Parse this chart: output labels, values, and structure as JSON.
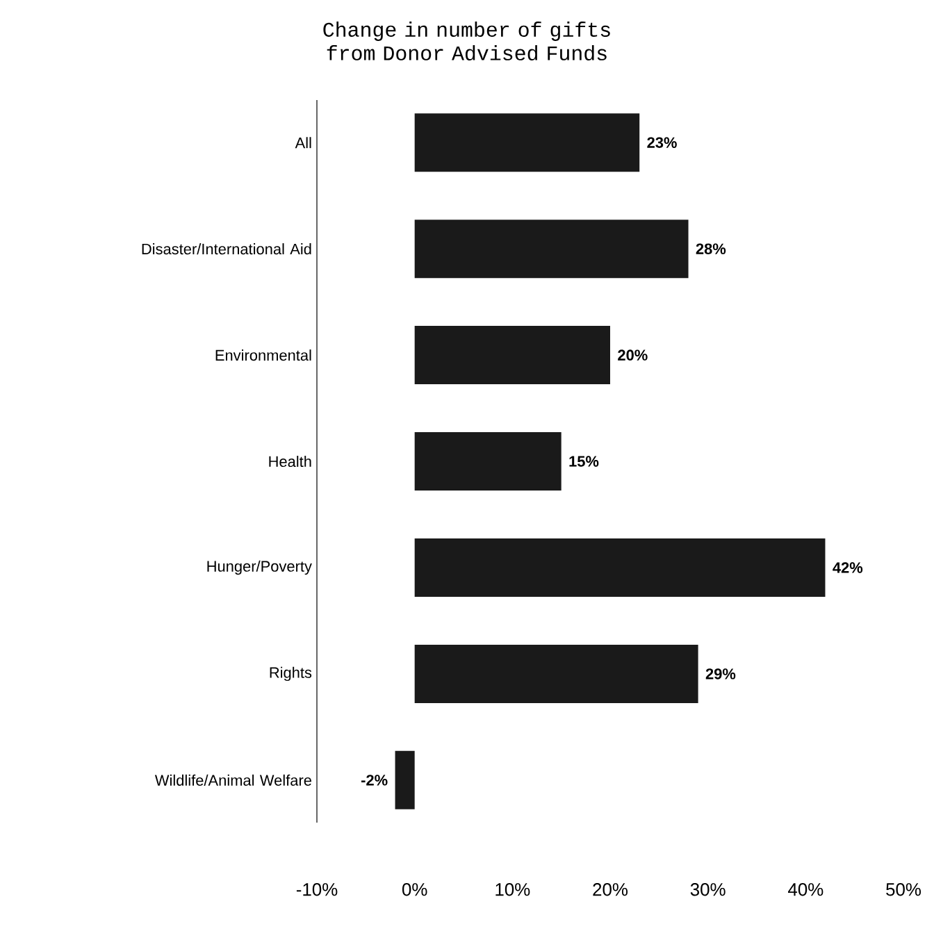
{
  "chart_data": {
    "type": "bar",
    "orientation": "horizontal",
    "title": "Change in number of gifts from Donor Advised Funds",
    "categories": [
      "All",
      "Disaster/International Aid",
      "Environmental",
      "Health",
      "Hunger/Poverty",
      "Rights",
      "Wildlife/Animal Welfare"
    ],
    "values": [
      23,
      28,
      20,
      15,
      42,
      29,
      -2
    ],
    "value_labels": [
      "23%",
      "28%",
      "20%",
      "15%",
      "42%",
      "29%",
      "-2%"
    ],
    "color": "#1a1a1a",
    "xlim": [
      -10,
      50
    ],
    "xticks": [
      {
        "value": -10,
        "label": "-10%"
      },
      {
        "value": 0,
        "label": "0%"
      },
      {
        "value": 10,
        "label": "10%"
      },
      {
        "value": 20,
        "label": "20%"
      },
      {
        "value": 30,
        "label": "30%"
      },
      {
        "value": 40,
        "label": "40%"
      },
      {
        "value": 50,
        "label": "50%"
      }
    ],
    "grid": false
  }
}
